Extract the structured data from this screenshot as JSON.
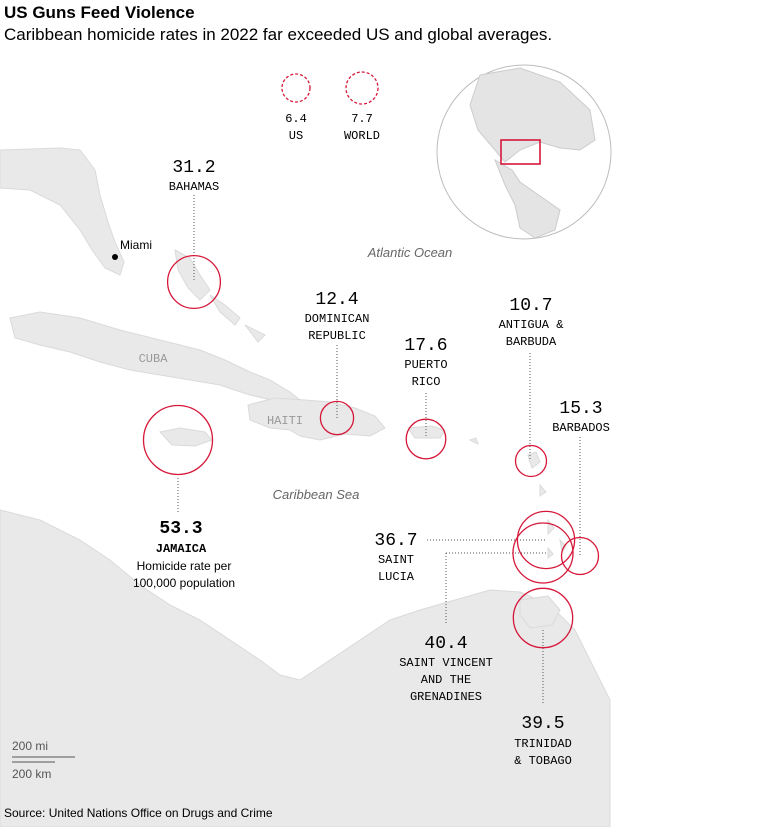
{
  "header": {
    "title": "US Guns Feed Violence",
    "subtitle": "Caribbean homicide rates in 2022 far exceeded US and global averages."
  },
  "legend": [
    {
      "value": "6.4",
      "label": "US"
    },
    {
      "value": "7.7",
      "label": "WORLD"
    }
  ],
  "map_labels": {
    "atlantic": "Atlantic Ocean",
    "caribbean": "Caribbean Sea",
    "cuba": "CUBA",
    "haiti": "HAITI",
    "miami": "Miami"
  },
  "countries": [
    {
      "name": "BAHAMAS",
      "rate": 31.2
    },
    {
      "name": "DOMINICAN\nREPUBLIC",
      "rate": 12.4
    },
    {
      "name": "PUERTO\nRICO",
      "rate": 17.6
    },
    {
      "name": "ANTIGUA &\nBARBUDA",
      "rate": 10.7
    },
    {
      "name": "BARBADOS",
      "rate": 15.3
    },
    {
      "name": "JAMAICA",
      "rate": 53.3
    },
    {
      "name": "SAINT\nLUCIA",
      "rate": 36.7
    },
    {
      "name": "SAINT VINCENT\nAND THE\nGRENADINES",
      "rate": 40.4
    },
    {
      "name": "TRINIDAD\n& TOBAGO",
      "rate": 39.5
    }
  ],
  "jamaica_note": "Homicide rate per\n100,000 population",
  "scale": {
    "miles": "200 mi",
    "km": "200 km"
  },
  "source": "Source: United Nations Office on Drugs and Crime",
  "colors": {
    "accent": "#d6183a",
    "land": "#e8e8e8",
    "border": "#cfcfcf"
  }
}
